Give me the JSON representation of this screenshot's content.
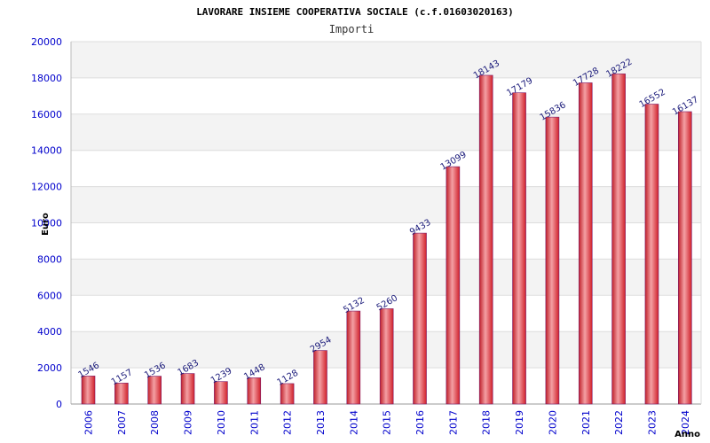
{
  "chart_data": {
    "type": "bar",
    "title": "LAVORARE INSIEME COOPERATIVA SOCIALE (c.f.01603020163)",
    "subtitle": "Importi",
    "xlabel": "Anno",
    "ylabel": "Euro",
    "ylim": [
      0,
      20000
    ],
    "yticks": [
      "0",
      "2000",
      "4000",
      "6000",
      "8000",
      "10000",
      "12000",
      "14000",
      "16000",
      "18000",
      "20000"
    ],
    "categories": [
      "2006",
      "2007",
      "2008",
      "2009",
      "2010",
      "2011",
      "2012",
      "2013",
      "2014",
      "2015",
      "2016",
      "2017",
      "2018",
      "2019",
      "2020",
      "2021",
      "2022",
      "2023",
      "2024"
    ],
    "values": [
      1546,
      1157,
      1536,
      1683,
      1239,
      1448,
      1128,
      2954,
      5132,
      5260,
      9433,
      13099,
      18143,
      17179,
      15836,
      17728,
      18222,
      16552,
      16137
    ],
    "grid": true,
    "colors": {
      "bar": "#e0303a",
      "bar_highlight": "#f4a0a4",
      "bar_border": "#7a1a6a",
      "label": "#1a1a7a",
      "tick": "#0000cc",
      "band": "#f3f3f3",
      "gridline": "#dddddd"
    }
  }
}
